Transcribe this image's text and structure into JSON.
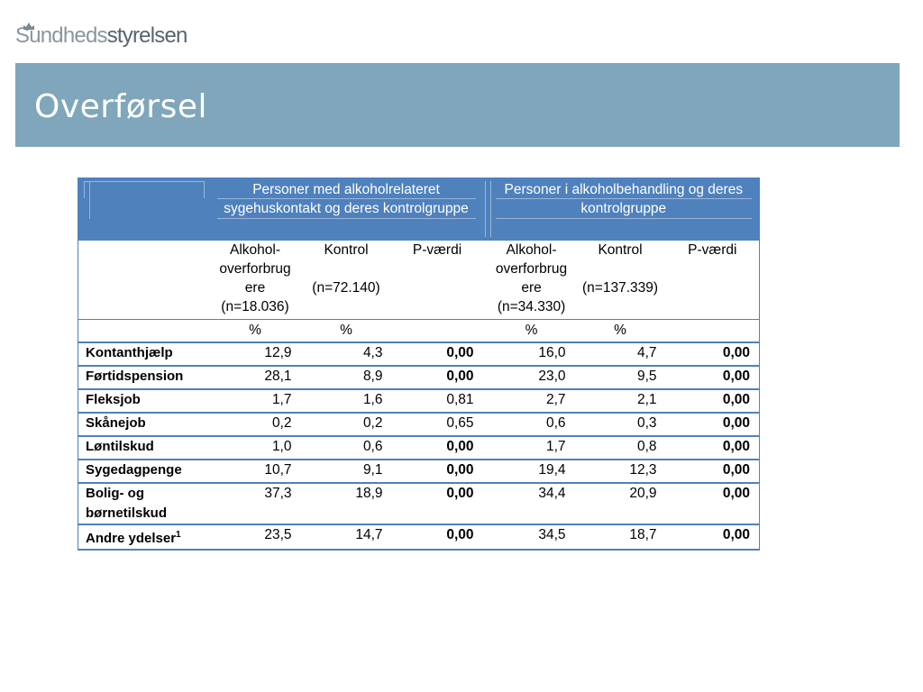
{
  "header": {
    "logo_part1": "Sundheds",
    "logo_part2": "styrelsen",
    "title": "Overførsel"
  },
  "table": {
    "group1": {
      "line1": "Personer med alkoholrelateret",
      "line2": "sygehuskontakt og deres kontrolgruppe"
    },
    "group2": {
      "line1": "Personer i alkoholbehandling og deres",
      "line2": "kontrolgruppe"
    },
    "subheaders": {
      "g1_alc": [
        "Alkohol-",
        "overforbrug",
        "ere",
        "(n=18.036)"
      ],
      "g1_ctrl": [
        "Kontrol",
        "",
        "(n=72.140)"
      ],
      "g1_p": "P-værdi",
      "g2_alc": [
        "Alkohol-",
        "overforbrug",
        "ere",
        "(n=34.330)"
      ],
      "g2_ctrl": [
        "Kontrol",
        "",
        "(n=137.339)"
      ],
      "g2_p": "P-værdi"
    },
    "pct": "%",
    "rows": [
      {
        "label": "Kontanthjælp",
        "sup": "",
        "v": [
          "12,9",
          "4,3",
          "0,00",
          "16,0",
          "4,7",
          "0,00"
        ],
        "bold": [
          false,
          false,
          true,
          false,
          false,
          true
        ]
      },
      {
        "label": "Førtidspension",
        "sup": "",
        "v": [
          "28,1",
          "8,9",
          "0,00",
          "23,0",
          "9,5",
          "0,00"
        ],
        "bold": [
          false,
          false,
          true,
          false,
          false,
          true
        ]
      },
      {
        "label": "Fleksjob",
        "sup": "",
        "v": [
          "1,7",
          "1,6",
          "0,81",
          "2,7",
          "2,1",
          "0,00"
        ],
        "bold": [
          false,
          false,
          false,
          false,
          false,
          true
        ]
      },
      {
        "label": "Skånejob",
        "sup": "",
        "v": [
          "0,2",
          "0,2",
          "0,65",
          "0,6",
          "0,3",
          "0,00"
        ],
        "bold": [
          false,
          false,
          false,
          false,
          false,
          true
        ]
      },
      {
        "label": "Løntilskud",
        "sup": "",
        "v": [
          "1,0",
          "0,6",
          "0,00",
          "1,7",
          "0,8",
          "0,00"
        ],
        "bold": [
          false,
          false,
          true,
          false,
          false,
          true
        ]
      },
      {
        "label": "Sygedagpenge",
        "sup": "",
        "v": [
          "10,7",
          "9,1",
          "0,00",
          "19,4",
          "12,3",
          "0,00"
        ],
        "bold": [
          false,
          false,
          true,
          false,
          false,
          true
        ]
      },
      {
        "label": "Bolig- og børnetilskud",
        "sup": "",
        "v": [
          "37,3",
          "18,9",
          "0,00",
          "34,4",
          "20,9",
          "0,00"
        ],
        "bold": [
          false,
          false,
          true,
          false,
          false,
          true
        ]
      },
      {
        "label": "Andre ydelser",
        "sup": "1",
        "v": [
          "23,5",
          "14,7",
          "0,00",
          "34,5",
          "18,7",
          "0,00"
        ],
        "bold": [
          false,
          false,
          true,
          false,
          false,
          true
        ]
      }
    ]
  }
}
